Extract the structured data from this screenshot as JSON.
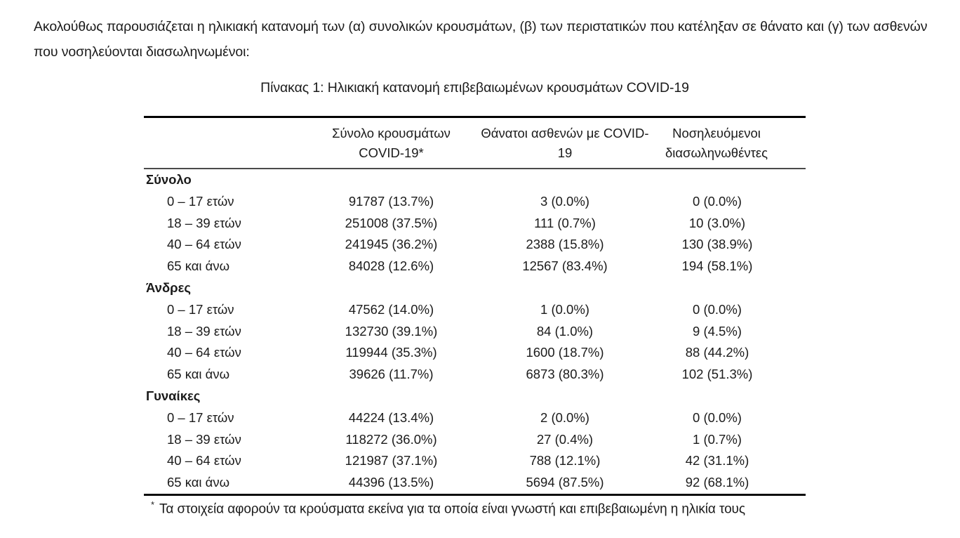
{
  "page": {
    "intro": "Ακολούθως παρουσιάζεται η ηλικιακή κατανομή των (α) συνολικών κρουσμάτων, (β) των περιστατικών που κατέληξαν σε θάνατο και (γ) των ασθενών που νοσηλεύονται διασωληνωμένοι:"
  },
  "table": {
    "title": "Πίνακας 1: Ηλικιακή κατανομή επιβεβαιωμένων κρουσμάτων COVID-19",
    "columns": {
      "cases": "Σύνολο κρουσμάτων COVID-19*",
      "deaths": "Θάνατοι ασθενών με COVID-19",
      "intubated": "Νοσηλευόμενοι διασωληνωθέντες"
    },
    "groups": [
      {
        "label": "Σύνολο",
        "rows": [
          {
            "age": "0 – 17 ετών",
            "cases": "91787 (13.7%)",
            "deaths": "3 (0.0%)",
            "intubated": "0 (0.0%)"
          },
          {
            "age": "18 – 39 ετών",
            "cases": "251008 (37.5%)",
            "deaths": "111 (0.7%)",
            "intubated": "10 (3.0%)"
          },
          {
            "age": "40 – 64 ετών",
            "cases": "241945 (36.2%)",
            "deaths": "2388 (15.8%)",
            "intubated": "130 (38.9%)"
          },
          {
            "age": "65 και άνω",
            "cases": "84028 (12.6%)",
            "deaths": "12567 (83.4%)",
            "intubated": "194 (58.1%)"
          }
        ]
      },
      {
        "label": "Άνδρες",
        "rows": [
          {
            "age": "0 – 17 ετών",
            "cases": "47562 (14.0%)",
            "deaths": "1 (0.0%)",
            "intubated": "0 (0.0%)"
          },
          {
            "age": "18 – 39 ετών",
            "cases": "132730 (39.1%)",
            "deaths": "84 (1.0%)",
            "intubated": "9 (4.5%)"
          },
          {
            "age": "40 – 64 ετών",
            "cases": "119944 (35.3%)",
            "deaths": "1600 (18.7%)",
            "intubated": "88 (44.2%)"
          },
          {
            "age": "65 και άνω",
            "cases": "39626 (11.7%)",
            "deaths": "6873 (80.3%)",
            "intubated": "102 (51.3%)"
          }
        ]
      },
      {
        "label": "Γυναίκες",
        "rows": [
          {
            "age": "0 – 17 ετών",
            "cases": "44224 (13.4%)",
            "deaths": "2 (0.0%)",
            "intubated": "0 (0.0%)"
          },
          {
            "age": "18 – 39 ετών",
            "cases": "118272 (36.0%)",
            "deaths": "27 (0.4%)",
            "intubated": "1 (0.7%)"
          },
          {
            "age": "40 – 64 ετών",
            "cases": "121987 (37.1%)",
            "deaths": "788 (12.1%)",
            "intubated": "42 (31.1%)"
          },
          {
            "age": "65 και άνω",
            "cases": "44396 (13.5%)",
            "deaths": "5694 (87.5%)",
            "intubated": "92 (68.1%)"
          }
        ]
      }
    ],
    "footnote": {
      "marker": "*",
      "text": "Τα στοιχεία αφορούν τα κρούσματα εκείνα για τα οποία είναι γνωστή και επιβεβαιωμένη η ηλικία τους"
    }
  },
  "colors": {
    "background": "#ffffff",
    "text": "#1b1b1b",
    "rule_strong": "#000000",
    "rule_header": "#4a4a4a"
  }
}
